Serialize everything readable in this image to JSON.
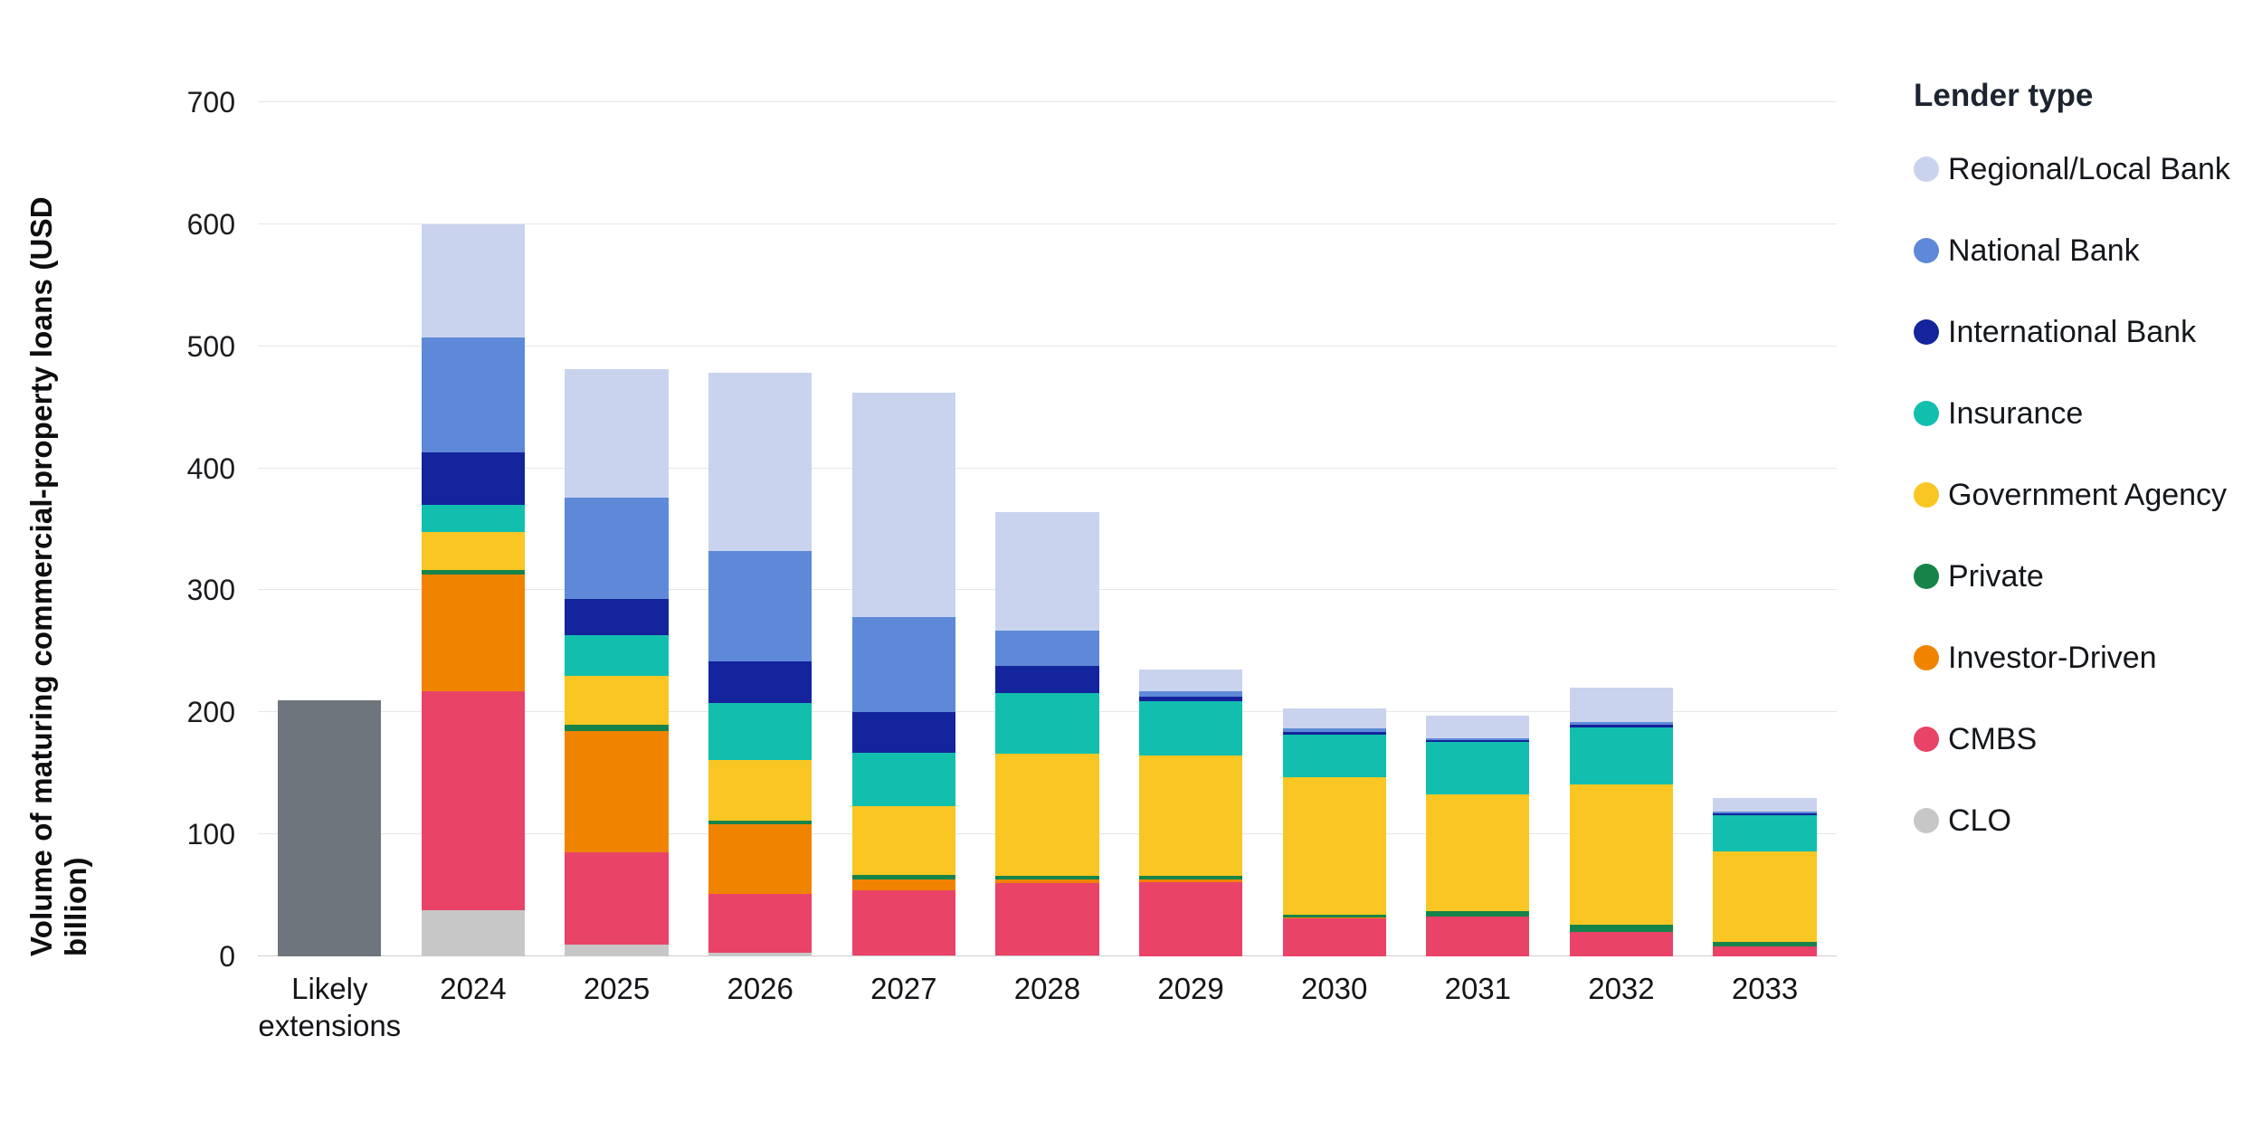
{
  "chart_data": {
    "type": "bar",
    "stacked": true,
    "ylabel": "Volume of maturing commercial-property loans (USD billion)",
    "ylim": [
      0,
      700
    ],
    "yticks": [
      0,
      100,
      200,
      300,
      400,
      500,
      600,
      700
    ],
    "grid": "horizontal",
    "legend_position": "right",
    "categories": [
      "Likely extensions",
      "2024",
      "2025",
      "2026",
      "2027",
      "2028",
      "2029",
      "2030",
      "2031",
      "2032",
      "2033"
    ],
    "series": [
      {
        "name": "Likely extensions",
        "color": "#6e757c",
        "values": [
          210,
          0,
          0,
          0,
          0,
          0,
          0,
          0,
          0,
          0,
          0
        ]
      },
      {
        "name": "CLO",
        "color": "#c7c7c7",
        "values": [
          0,
          38,
          10,
          3,
          1,
          1,
          0,
          0,
          0,
          0,
          0
        ]
      },
      {
        "name": "CMBS",
        "color": "#e94368",
        "values": [
          0,
          179,
          75,
          48,
          53,
          59,
          61,
          31,
          33,
          20,
          8
        ]
      },
      {
        "name": "Investor-Driven",
        "color": "#f08300",
        "values": [
          0,
          96,
          100,
          57,
          9,
          3,
          2,
          1,
          0,
          0,
          0
        ]
      },
      {
        "name": "Private",
        "color": "#168448",
        "values": [
          0,
          4,
          5,
          3,
          4,
          3,
          3,
          2,
          4,
          6,
          4
        ]
      },
      {
        "name": "Government Agency",
        "color": "#f9c623",
        "values": [
          0,
          31,
          40,
          50,
          56,
          100,
          99,
          113,
          96,
          115,
          74
        ]
      },
      {
        "name": "Insurance",
        "color": "#12bfae",
        "values": [
          0,
          22,
          33,
          47,
          44,
          50,
          44,
          35,
          43,
          47,
          30
        ]
      },
      {
        "name": "International Bank",
        "color": "#13249c",
        "values": [
          0,
          43,
          30,
          34,
          33,
          22,
          4,
          2,
          1,
          2,
          1
        ]
      },
      {
        "name": "National Bank",
        "color": "#5d89d8",
        "values": [
          0,
          94,
          83,
          90,
          78,
          29,
          4,
          3,
          2,
          2,
          2
        ]
      },
      {
        "name": "Regional/Local Bank",
        "color": "#c9d3ee",
        "values": [
          0,
          93,
          105,
          146,
          184,
          97,
          18,
          16,
          18,
          28,
          11
        ]
      }
    ],
    "legend": {
      "title": "Lender type",
      "items": [
        {
          "label": "Regional/Local Bank",
          "color": "#c9d3ee"
        },
        {
          "label": "National Bank",
          "color": "#5d89d8"
        },
        {
          "label": "International Bank",
          "color": "#13249c"
        },
        {
          "label": "Insurance",
          "color": "#12bfae"
        },
        {
          "label": "Government Agency",
          "color": "#f9c623"
        },
        {
          "label": "Private",
          "color": "#168448"
        },
        {
          "label": "Investor-Driven",
          "color": "#f08300"
        },
        {
          "label": "CMBS",
          "color": "#e94368"
        },
        {
          "label": "CLO",
          "color": "#c7c7c7"
        }
      ]
    }
  }
}
